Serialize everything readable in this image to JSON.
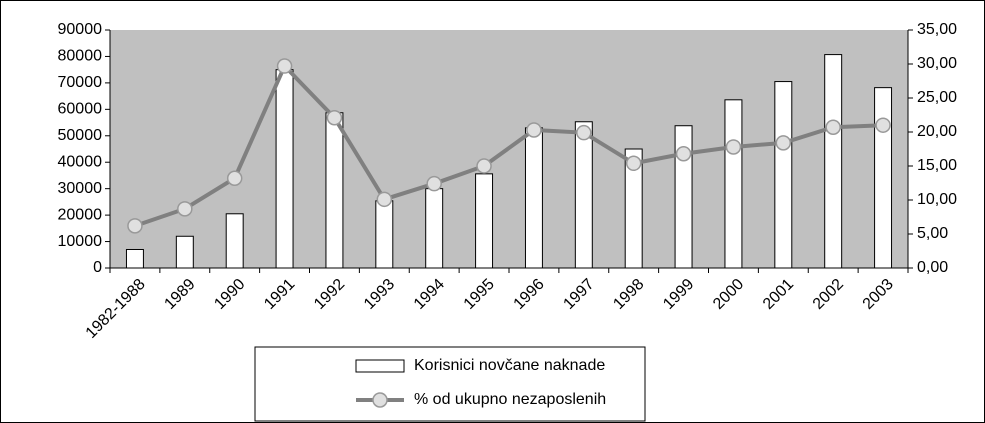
{
  "chart_data": {
    "type": "bar-line",
    "categories": [
      "1982-1988",
      "1989",
      "1990",
      "1991",
      "1992",
      "1993",
      "1994",
      "1995",
      "1996",
      "1997",
      "1998",
      "1999",
      "2000",
      "2001",
      "2002",
      "2003"
    ],
    "series": [
      {
        "name": "Korisnici novčane naknade",
        "type": "bar",
        "color": "#ffffff",
        "values": [
          7000,
          12000,
          20500,
          75000,
          58700,
          25400,
          30000,
          35600,
          53000,
          55300,
          45000,
          53800,
          63600,
          70500,
          80700,
          68200
        ]
      },
      {
        "name": "% od ukupno nezaposlenih",
        "type": "line",
        "axis": "y2",
        "color": "#808080",
        "values": [
          6.2,
          8.7,
          13.2,
          29.7,
          22.1,
          10.1,
          12.4,
          15.0,
          20.3,
          19.9,
          15.4,
          16.8,
          17.8,
          18.4,
          20.7,
          21.0
        ]
      }
    ],
    "ylim": [
      0,
      90000
    ],
    "yticks": [
      0,
      10000,
      20000,
      30000,
      40000,
      50000,
      60000,
      70000,
      80000,
      90000
    ],
    "y2lim": [
      0,
      35
    ],
    "y2ticks": [
      {
        "value": 0,
        "label": "0,00"
      },
      {
        "value": 5,
        "label": "5,00"
      },
      {
        "value": 10,
        "label": "10,00"
      },
      {
        "value": 15,
        "label": "15,00"
      },
      {
        "value": 20,
        "label": "20,00"
      },
      {
        "value": 25,
        "label": "25,00"
      },
      {
        "value": 30,
        "label": "30,00"
      },
      {
        "value": 35,
        "label": "35,00"
      }
    ],
    "legend": "bottom"
  }
}
